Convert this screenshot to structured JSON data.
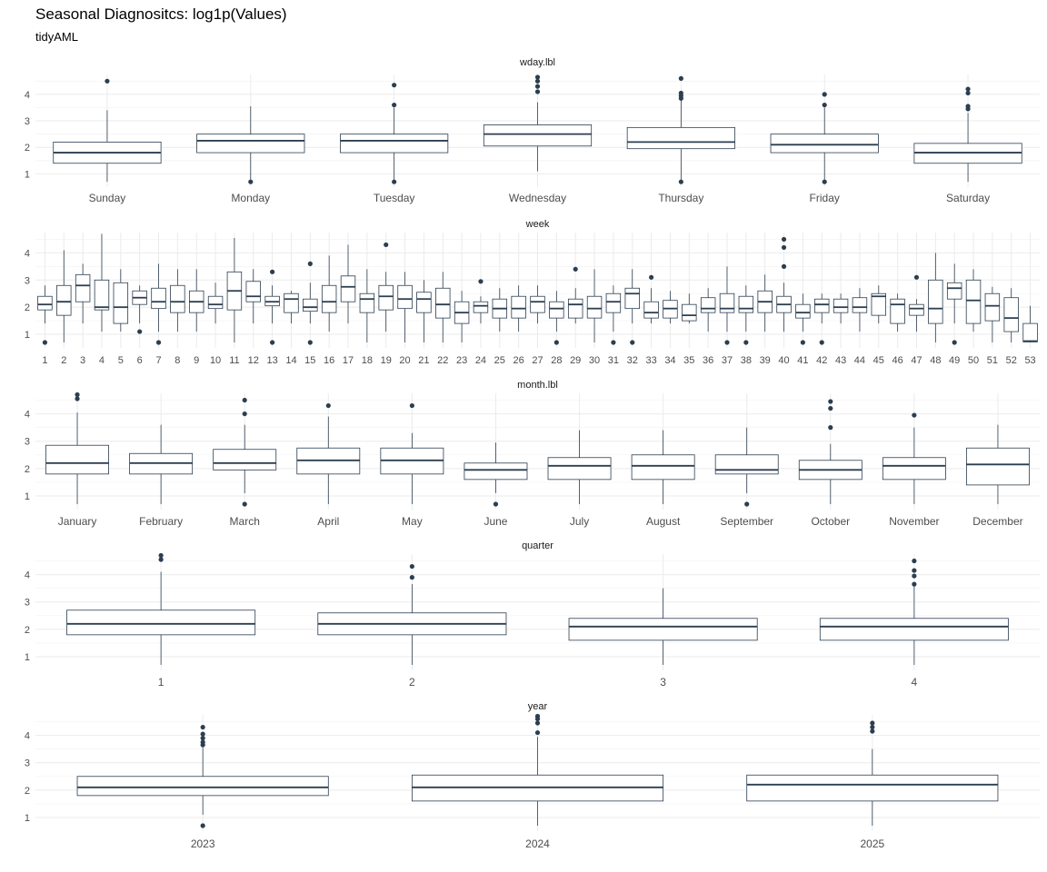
{
  "title": "Seasonal Diagnositcs: log1p(Values)",
  "subtitle": "tidyAML",
  "colors": {
    "box": "#2c3e50",
    "grid_major": "#ebebeb",
    "grid_minor": "#f4f4f4",
    "text": "#4d4d4d"
  },
  "chart_data": [
    {
      "type": "box",
      "facet": "wday.lbl",
      "yticks": [
        1,
        2,
        3,
        4
      ],
      "ylim": [
        0.5,
        4.75
      ],
      "categories": [
        "Sunday",
        "Monday",
        "Tuesday",
        "Wednesday",
        "Thursday",
        "Friday",
        "Saturday"
      ],
      "boxes": [
        {
          "low": 0.7,
          "q1": 1.4,
          "med": 1.8,
          "q3": 2.2,
          "high": 3.4,
          "out": [
            4.5
          ]
        },
        {
          "low": 0.7,
          "q1": 1.8,
          "med": 2.25,
          "q3": 2.5,
          "high": 3.55,
          "out": [
            0.7
          ]
        },
        {
          "low": 0.7,
          "q1": 1.8,
          "med": 2.25,
          "q3": 2.5,
          "high": 3.5,
          "out": [
            0.7,
            3.6,
            4.35
          ]
        },
        {
          "low": 1.1,
          "q1": 2.05,
          "med": 2.5,
          "q3": 2.85,
          "high": 3.7,
          "out": [
            4.1,
            4.3,
            4.5,
            4.65
          ]
        },
        {
          "low": 0.7,
          "q1": 1.95,
          "med": 2.2,
          "q3": 2.75,
          "high": 3.8,
          "out": [
            0.7,
            3.85,
            3.95,
            4.05,
            4.6
          ]
        },
        {
          "low": 0.7,
          "q1": 1.8,
          "med": 2.1,
          "q3": 2.5,
          "high": 3.5,
          "out": [
            0.7,
            3.6,
            4.0
          ]
        },
        {
          "low": 0.7,
          "q1": 1.4,
          "med": 1.8,
          "q3": 2.15,
          "high": 3.3,
          "out": [
            3.45,
            3.55,
            4.05,
            4.2
          ]
        }
      ]
    },
    {
      "type": "box",
      "facet": "week",
      "yticks": [
        1,
        2,
        3,
        4
      ],
      "ylim": [
        0.5,
        4.75
      ],
      "categories": [
        "1",
        "2",
        "3",
        "4",
        "5",
        "6",
        "7",
        "8",
        "9",
        "10",
        "11",
        "12",
        "13",
        "14",
        "15",
        "16",
        "17",
        "18",
        "19",
        "20",
        "21",
        "22",
        "23",
        "24",
        "25",
        "26",
        "27",
        "28",
        "29",
        "30",
        "31",
        "32",
        "33",
        "34",
        "35",
        "36",
        "37",
        "38",
        "39",
        "40",
        "41",
        "42",
        "43",
        "44",
        "45",
        "46",
        "47",
        "48",
        "49",
        "50",
        "51",
        "52",
        "53"
      ],
      "boxes": [
        {
          "low": 1.4,
          "q1": 1.9,
          "med": 2.1,
          "q3": 2.4,
          "high": 2.8,
          "out": [
            0.7
          ]
        },
        {
          "low": 0.7,
          "q1": 1.7,
          "med": 2.2,
          "q3": 2.8,
          "high": 4.1,
          "out": []
        },
        {
          "low": 1.4,
          "q1": 2.2,
          "med": 2.8,
          "q3": 3.2,
          "high": 3.6,
          "out": []
        },
        {
          "low": 1.1,
          "q1": 1.9,
          "med": 2.0,
          "q3": 3.0,
          "high": 4.7,
          "out": []
        },
        {
          "low": 1.1,
          "q1": 1.4,
          "med": 2.0,
          "q3": 2.9,
          "high": 3.4,
          "out": []
        },
        {
          "low": 1.4,
          "q1": 2.1,
          "med": 2.35,
          "q3": 2.6,
          "high": 2.8,
          "out": [
            1.1
          ]
        },
        {
          "low": 1.1,
          "q1": 1.95,
          "med": 2.2,
          "q3": 2.7,
          "high": 3.6,
          "out": [
            0.7
          ]
        },
        {
          "low": 1.1,
          "q1": 1.8,
          "med": 2.2,
          "q3": 2.8,
          "high": 3.4,
          "out": []
        },
        {
          "low": 1.1,
          "q1": 1.8,
          "med": 2.2,
          "q3": 2.6,
          "high": 3.4,
          "out": []
        },
        {
          "low": 1.4,
          "q1": 1.95,
          "med": 2.1,
          "q3": 2.4,
          "high": 2.9,
          "out": []
        },
        {
          "low": 0.7,
          "q1": 1.9,
          "med": 2.6,
          "q3": 3.3,
          "high": 4.55,
          "out": []
        },
        {
          "low": 1.4,
          "q1": 2.2,
          "med": 2.4,
          "q3": 2.95,
          "high": 3.4,
          "out": []
        },
        {
          "low": 1.4,
          "q1": 2.05,
          "med": 2.2,
          "q3": 2.4,
          "high": 2.8,
          "out": [
            0.7,
            3.3
          ]
        },
        {
          "low": 1.4,
          "q1": 1.8,
          "med": 2.3,
          "q3": 2.5,
          "high": 2.6,
          "out": []
        },
        {
          "low": 1.4,
          "q1": 1.85,
          "med": 2.0,
          "q3": 2.3,
          "high": 2.9,
          "out": [
            0.7,
            3.6
          ]
        },
        {
          "low": 1.1,
          "q1": 1.8,
          "med": 2.2,
          "q3": 2.8,
          "high": 3.9,
          "out": []
        },
        {
          "low": 1.4,
          "q1": 2.2,
          "med": 2.75,
          "q3": 3.15,
          "high": 4.3,
          "out": []
        },
        {
          "low": 0.7,
          "q1": 1.8,
          "med": 2.3,
          "q3": 2.5,
          "high": 3.4,
          "out": []
        },
        {
          "low": 1.1,
          "q1": 1.9,
          "med": 2.4,
          "q3": 2.8,
          "high": 3.3,
          "out": [
            4.3
          ]
        },
        {
          "low": 0.7,
          "q1": 1.95,
          "med": 2.3,
          "q3": 2.8,
          "high": 3.3,
          "out": []
        },
        {
          "low": 0.7,
          "q1": 1.8,
          "med": 2.3,
          "q3": 2.55,
          "high": 3.0,
          "out": []
        },
        {
          "low": 0.7,
          "q1": 1.6,
          "med": 2.1,
          "q3": 2.7,
          "high": 3.3,
          "out": []
        },
        {
          "low": 0.7,
          "q1": 1.4,
          "med": 1.8,
          "q3": 2.2,
          "high": 2.6,
          "out": []
        },
        {
          "low": 1.4,
          "q1": 1.8,
          "med": 2.05,
          "q3": 2.2,
          "high": 2.4,
          "out": [
            2.95
          ]
        },
        {
          "low": 1.1,
          "q1": 1.6,
          "med": 1.95,
          "q3": 2.3,
          "high": 2.7,
          "out": []
        },
        {
          "low": 1.1,
          "q1": 1.6,
          "med": 1.95,
          "q3": 2.4,
          "high": 2.8,
          "out": []
        },
        {
          "low": 1.4,
          "q1": 1.8,
          "med": 2.2,
          "q3": 2.4,
          "high": 2.8,
          "out": []
        },
        {
          "low": 1.1,
          "q1": 1.6,
          "med": 1.95,
          "q3": 2.2,
          "high": 2.6,
          "out": [
            0.7
          ]
        },
        {
          "low": 1.4,
          "q1": 1.6,
          "med": 2.1,
          "q3": 2.3,
          "high": 2.7,
          "out": [
            3.4
          ]
        },
        {
          "low": 0.7,
          "q1": 1.6,
          "med": 1.95,
          "q3": 2.4,
          "high": 3.4,
          "out": []
        },
        {
          "low": 1.1,
          "q1": 1.8,
          "med": 2.2,
          "q3": 2.5,
          "high": 2.8,
          "out": [
            0.7
          ]
        },
        {
          "low": 1.4,
          "q1": 1.95,
          "med": 2.5,
          "q3": 2.7,
          "high": 3.4,
          "out": [
            0.7
          ]
        },
        {
          "low": 1.4,
          "q1": 1.6,
          "med": 1.8,
          "q3": 2.2,
          "high": 2.7,
          "out": [
            3.1
          ]
        },
        {
          "low": 1.4,
          "q1": 1.6,
          "med": 1.95,
          "q3": 2.25,
          "high": 2.6,
          "out": []
        },
        {
          "low": 1.4,
          "q1": 1.5,
          "med": 1.7,
          "q3": 2.1,
          "high": 2.5,
          "out": []
        },
        {
          "low": 1.1,
          "q1": 1.8,
          "med": 1.95,
          "q3": 2.35,
          "high": 2.7,
          "out": []
        },
        {
          "low": 1.1,
          "q1": 1.8,
          "med": 1.95,
          "q3": 2.5,
          "high": 3.5,
          "out": [
            0.7
          ]
        },
        {
          "low": 1.1,
          "q1": 1.8,
          "med": 1.95,
          "q3": 2.4,
          "high": 2.8,
          "out": [
            0.7
          ]
        },
        {
          "low": 1.1,
          "q1": 1.8,
          "med": 2.2,
          "q3": 2.6,
          "high": 3.2,
          "out": []
        },
        {
          "low": 1.1,
          "q1": 1.8,
          "med": 2.1,
          "q3": 2.4,
          "high": 2.9,
          "out": [
            3.5,
            4.2,
            4.5
          ]
        },
        {
          "low": 1.1,
          "q1": 1.6,
          "med": 1.8,
          "q3": 2.1,
          "high": 2.5,
          "out": [
            0.7
          ]
        },
        {
          "low": 1.4,
          "q1": 1.8,
          "med": 2.1,
          "q3": 2.3,
          "high": 2.5,
          "out": [
            0.7
          ]
        },
        {
          "low": 1.4,
          "q1": 1.8,
          "med": 2.0,
          "q3": 2.3,
          "high": 2.5,
          "out": []
        },
        {
          "low": 1.1,
          "q1": 1.8,
          "med": 2.0,
          "q3": 2.35,
          "high": 2.7,
          "out": []
        },
        {
          "low": 1.4,
          "q1": 1.7,
          "med": 2.4,
          "q3": 2.5,
          "high": 2.8,
          "out": []
        },
        {
          "low": 1.1,
          "q1": 1.4,
          "med": 2.1,
          "q3": 2.3,
          "high": 2.5,
          "out": []
        },
        {
          "low": 1.1,
          "q1": 1.7,
          "med": 1.95,
          "q3": 2.1,
          "high": 2.3,
          "out": [
            3.1
          ]
        },
        {
          "low": 0.7,
          "q1": 1.4,
          "med": 1.95,
          "q3": 3.0,
          "high": 4.0,
          "out": []
        },
        {
          "low": 1.4,
          "q1": 2.3,
          "med": 2.7,
          "q3": 2.9,
          "high": 3.6,
          "out": [
            0.7
          ]
        },
        {
          "low": 1.1,
          "q1": 1.4,
          "med": 2.25,
          "q3": 3.0,
          "high": 3.4,
          "out": []
        },
        {
          "low": 0.7,
          "q1": 1.5,
          "med": 2.05,
          "q3": 2.5,
          "high": 2.75,
          "out": []
        },
        {
          "low": 0.7,
          "q1": 1.1,
          "med": 1.6,
          "q3": 2.35,
          "high": 2.7,
          "out": []
        },
        {
          "low": 0.7,
          "q1": 0.72,
          "med": 0.75,
          "q3": 1.4,
          "high": 2.05,
          "out": []
        }
      ]
    },
    {
      "type": "box",
      "facet": "month.lbl",
      "yticks": [
        1,
        2,
        3,
        4
      ],
      "ylim": [
        0.5,
        4.75
      ],
      "categories": [
        "January",
        "February",
        "March",
        "April",
        "May",
        "June",
        "July",
        "August",
        "September",
        "October",
        "November",
        "December"
      ],
      "boxes": [
        {
          "low": 0.7,
          "q1": 1.8,
          "med": 2.2,
          "q3": 2.85,
          "high": 4.05,
          "out": [
            4.55,
            4.7
          ]
        },
        {
          "low": 0.7,
          "q1": 1.8,
          "med": 2.2,
          "q3": 2.55,
          "high": 3.6,
          "out": []
        },
        {
          "low": 1.1,
          "q1": 1.95,
          "med": 2.2,
          "q3": 2.7,
          "high": 3.6,
          "out": [
            0.7,
            4.0,
            4.5
          ]
        },
        {
          "low": 0.7,
          "q1": 1.8,
          "med": 2.3,
          "q3": 2.75,
          "high": 3.9,
          "out": [
            4.3
          ]
        },
        {
          "low": 0.7,
          "q1": 1.8,
          "med": 2.3,
          "q3": 2.75,
          "high": 3.3,
          "out": [
            4.3
          ]
        },
        {
          "low": 1.1,
          "q1": 1.6,
          "med": 1.95,
          "q3": 2.2,
          "high": 2.95,
          "out": [
            0.7
          ]
        },
        {
          "low": 0.7,
          "q1": 1.6,
          "med": 2.1,
          "q3": 2.4,
          "high": 3.4,
          "out": []
        },
        {
          "low": 0.7,
          "q1": 1.6,
          "med": 2.1,
          "q3": 2.5,
          "high": 3.4,
          "out": []
        },
        {
          "low": 1.1,
          "q1": 1.8,
          "med": 1.95,
          "q3": 2.5,
          "high": 3.5,
          "out": [
            0.7
          ]
        },
        {
          "low": 0.7,
          "q1": 1.6,
          "med": 1.95,
          "q3": 2.3,
          "high": 2.9,
          "out": [
            3.5,
            4.2,
            4.45
          ]
        },
        {
          "low": 0.7,
          "q1": 1.6,
          "med": 2.1,
          "q3": 2.4,
          "high": 3.5,
          "out": [
            3.95
          ]
        },
        {
          "low": 0.7,
          "q1": 1.4,
          "med": 2.15,
          "q3": 2.75,
          "high": 3.6,
          "out": []
        }
      ]
    },
    {
      "type": "box",
      "facet": "quarter",
      "yticks": [
        1,
        2,
        3,
        4
      ],
      "ylim": [
        0.5,
        4.75
      ],
      "categories": [
        "1",
        "2",
        "3",
        "4"
      ],
      "boxes": [
        {
          "low": 0.7,
          "q1": 1.8,
          "med": 2.2,
          "q3": 2.7,
          "high": 4.1,
          "out": [
            4.55,
            4.7
          ]
        },
        {
          "low": 0.7,
          "q1": 1.8,
          "med": 2.2,
          "q3": 2.6,
          "high": 3.65,
          "out": [
            3.9,
            4.3
          ]
        },
        {
          "low": 0.7,
          "q1": 1.6,
          "med": 2.1,
          "q3": 2.4,
          "high": 3.5,
          "out": []
        },
        {
          "low": 0.7,
          "q1": 1.6,
          "med": 2.1,
          "q3": 2.4,
          "high": 3.6,
          "out": [
            3.65,
            3.95,
            4.15,
            4.5
          ]
        }
      ]
    },
    {
      "type": "box",
      "facet": "year",
      "yticks": [
        1,
        2,
        3,
        4
      ],
      "ylim": [
        0.5,
        4.75
      ],
      "categories": [
        "2023",
        "2024",
        "2025"
      ],
      "boxes": [
        {
          "low": 1.1,
          "q1": 1.8,
          "med": 2.1,
          "q3": 2.5,
          "high": 3.55,
          "out": [
            0.7,
            3.65,
            3.75,
            3.9,
            4.05,
            4.3
          ]
        },
        {
          "low": 0.7,
          "q1": 1.6,
          "med": 2.1,
          "q3": 2.55,
          "high": 3.95,
          "out": [
            4.1,
            4.45,
            4.6,
            4.7
          ]
        },
        {
          "low": 0.7,
          "q1": 1.6,
          "med": 2.2,
          "q3": 2.55,
          "high": 3.5,
          "out": [
            4.15,
            4.3,
            4.45
          ]
        }
      ]
    }
  ]
}
